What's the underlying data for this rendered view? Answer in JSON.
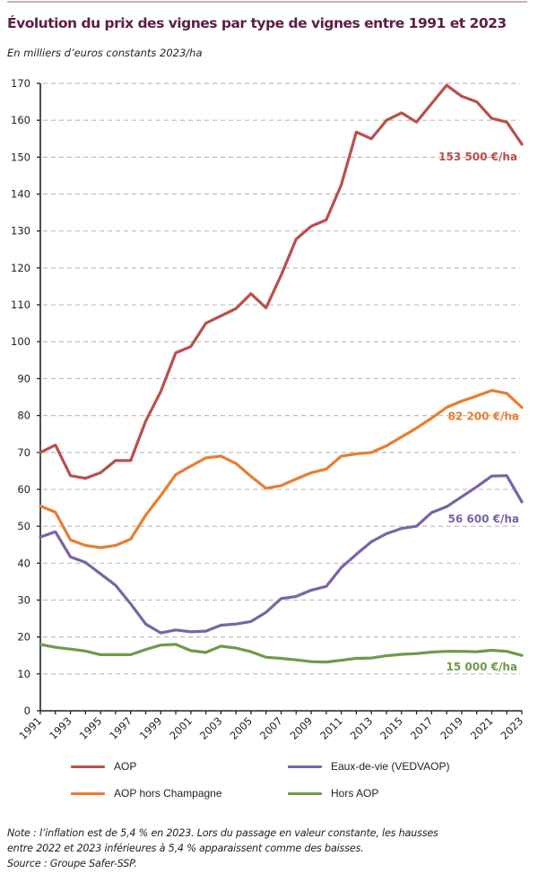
{
  "header": {
    "title": "Évolution du prix des vignes par type de vignes entre 1991 et 2023",
    "subtitle": "En milliers d’euros constants 2023/ha"
  },
  "colors": {
    "title": "#5c1f44",
    "aop": "#b94f4c",
    "aop_hors_champagne": "#e67e30",
    "eaux_de_vie": "#7a63a8",
    "hors_aop": "#6f9a4a",
    "grid": "#bdbdbd",
    "axis": "#222222"
  },
  "chart_data": {
    "type": "line",
    "title": "Évolution du prix des vignes par type de vignes entre 1991 et 2023",
    "subtitle": "En milliers d’euros constants 2023/ha",
    "xlabel": "",
    "ylabel": "",
    "ylim": [
      0,
      170
    ],
    "yticks": [
      0,
      10,
      20,
      30,
      40,
      50,
      60,
      70,
      80,
      90,
      100,
      110,
      120,
      130,
      140,
      150,
      160,
      170
    ],
    "xlim": [
      1991,
      2023
    ],
    "x": [
      1991,
      1992,
      1993,
      1994,
      1995,
      1996,
      1997,
      1998,
      1999,
      2000,
      2001,
      2002,
      2003,
      2004,
      2005,
      2006,
      2007,
      2008,
      2009,
      2010,
      2011,
      2012,
      2013,
      2014,
      2015,
      2016,
      2017,
      2018,
      2019,
      2020,
      2021,
      2022,
      2023
    ],
    "xtick_labels": [
      "1991",
      "1993",
      "1995",
      "1997",
      "1999",
      "2001",
      "2003",
      "2005",
      "2007",
      "2009",
      "2011",
      "2013",
      "2015",
      "2017",
      "2019",
      "2021",
      "2023"
    ],
    "grid": true,
    "legend_position": "bottom",
    "series": [
      {
        "name": "AOP",
        "color_key": "aop",
        "values": [
          70.0,
          72.0,
          63.7,
          63.0,
          64.5,
          67.8,
          67.8,
          78.5,
          86.5,
          97.0,
          98.7,
          105.0,
          107.0,
          109.0,
          113.0,
          109.2,
          118.0,
          127.8,
          131.3,
          133.0,
          142.5,
          156.8,
          155.0,
          160.0,
          162.0,
          159.5,
          164.5,
          169.5,
          166.5,
          165.0,
          160.5,
          159.5,
          153.5
        ],
        "end_label": "153 500 €/ha"
      },
      {
        "name": "AOP hors Champagne",
        "color_key": "aop_hors_champagne",
        "values": [
          55.5,
          53.8,
          46.3,
          44.8,
          44.2,
          44.8,
          46.5,
          53.0,
          58.3,
          64.0,
          66.3,
          68.5,
          69.0,
          67.0,
          63.5,
          60.3,
          61.0,
          62.8,
          64.5,
          65.5,
          69.0,
          69.6,
          70.0,
          71.8,
          74.2,
          76.6,
          79.3,
          82.2,
          83.9,
          85.3,
          86.8,
          86.0,
          82.2
        ],
        "end_label": "82 200 €/ha"
      },
      {
        "name": "Eaux-de-vie (VEDVAOP)",
        "color_key": "eaux_de_vie",
        "values": [
          47.1,
          48.5,
          41.7,
          40.2,
          37.1,
          34.0,
          29.0,
          23.5,
          21.1,
          21.9,
          21.4,
          21.6,
          23.2,
          23.5,
          24.2,
          26.7,
          30.4,
          31.0,
          32.7,
          33.7,
          38.8,
          42.4,
          45.8,
          48.0,
          49.4,
          50.0,
          53.7,
          55.3,
          58.0,
          60.7,
          63.6,
          63.7,
          56.6
        ],
        "end_label": "56 600 €/ha"
      },
      {
        "name": "Hors AOP",
        "color_key": "hors_aop",
        "values": [
          18.0,
          17.2,
          16.7,
          16.2,
          15.2,
          15.2,
          15.2,
          16.6,
          17.8,
          18.0,
          16.3,
          15.8,
          17.5,
          17.0,
          16.0,
          14.5,
          14.2,
          13.8,
          13.3,
          13.2,
          13.7,
          14.2,
          14.3,
          14.9,
          15.3,
          15.5,
          15.9,
          16.1,
          16.1,
          16.0,
          16.4,
          16.1,
          15.0
        ],
        "end_label": "15 000 €/ha"
      }
    ]
  },
  "legend": {
    "items": [
      {
        "label": "AOP",
        "color_key": "aop"
      },
      {
        "label": "Eaux-de-vie (VEDVAOP)",
        "color_key": "eaux_de_vie"
      },
      {
        "label": "AOP hors Champagne",
        "color_key": "aop_hors_champagne"
      },
      {
        "label": "Hors AOP",
        "color_key": "hors_aop"
      }
    ]
  },
  "footer": {
    "note_line1": "Note : l’inflation est de 5,4 % en 2023. Lors du passage en valeur constante, les hausses",
    "note_line2": "entre 2022 et 2023 inférieures à 5,4 % apparaissent comme des baisses.",
    "source": "Source : Groupe Safer-SSP."
  }
}
